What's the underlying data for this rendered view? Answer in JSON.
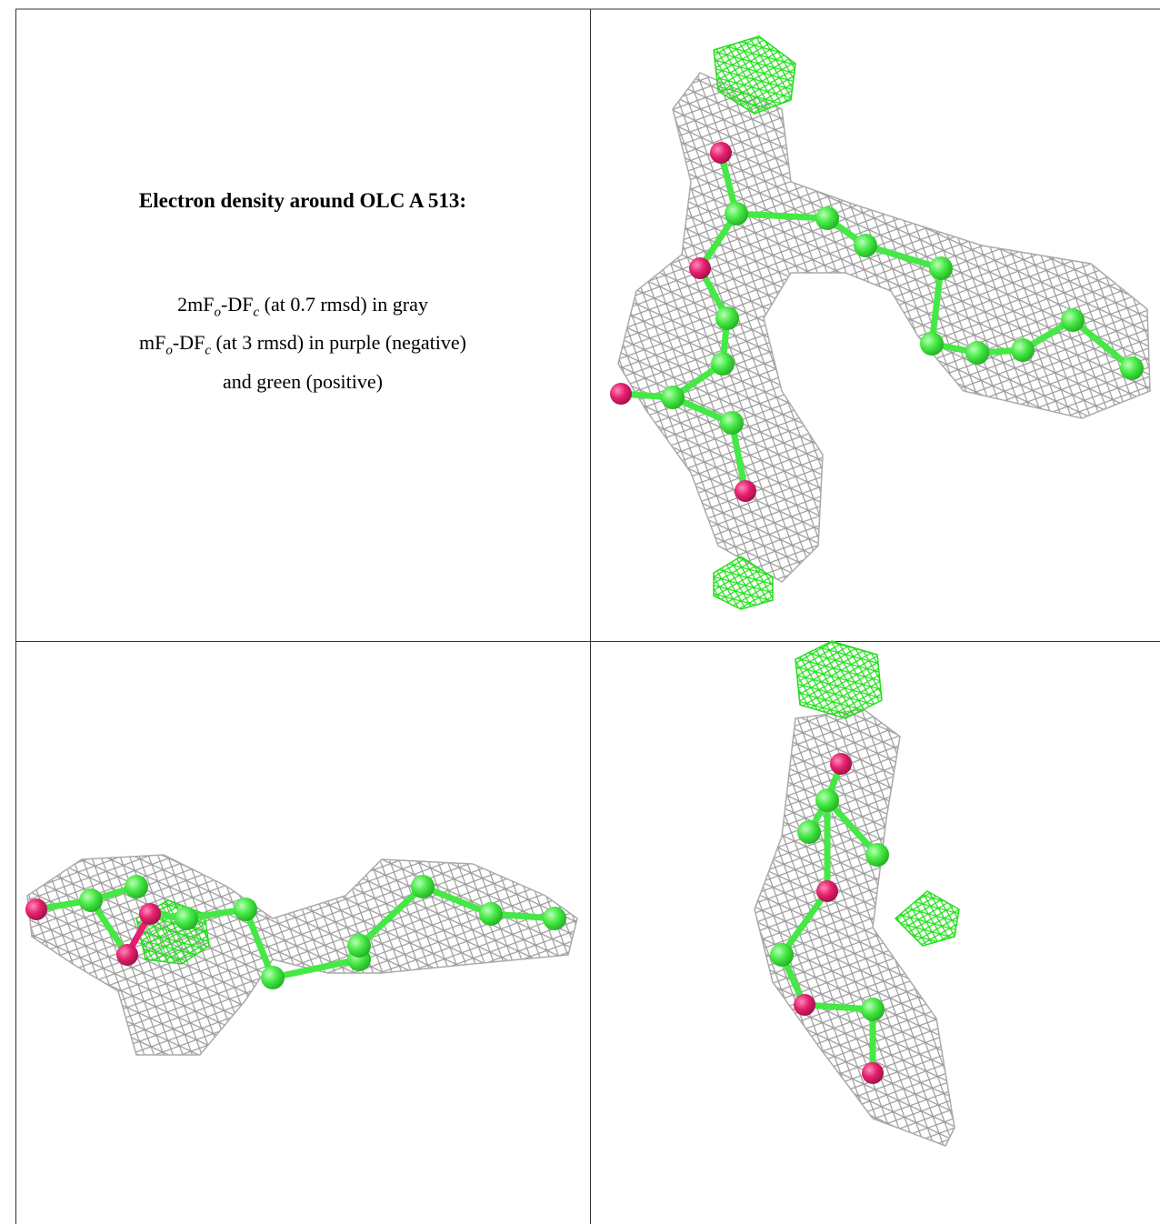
{
  "panel": {
    "title": "Electron density around OLC A 513:",
    "lines": [
      [
        {
          "text": "2mF"
        },
        {
          "text": "o",
          "sub": true
        },
        {
          "text": "-DF"
        },
        {
          "text": "c",
          "sub": true
        },
        {
          "text": " (at 0.7 rmsd) in gray"
        }
      ],
      [
        {
          "text": "mF"
        },
        {
          "text": "o",
          "sub": true
        },
        {
          "text": "-DF"
        },
        {
          "text": "c",
          "sub": true
        },
        {
          "text": " (at 3 rmsd) in purple (negative)"
        }
      ],
      [
        {
          "text": "and green (positive)"
        }
      ]
    ]
  }
}
